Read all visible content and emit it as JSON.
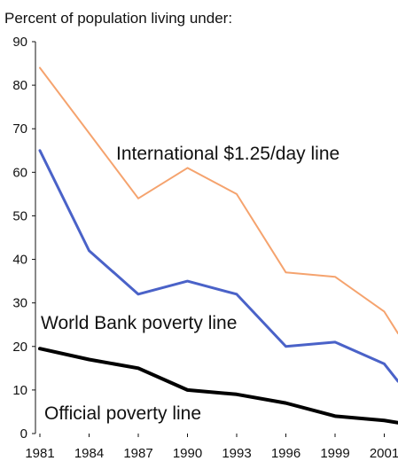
{
  "chart_data": {
    "type": "line",
    "title": "Percent of population living under:",
    "xlabel": "",
    "ylabel": "",
    "x": [
      "1981",
      "1984",
      "1987",
      "1990",
      "1993",
      "1996",
      "1999",
      "2001"
    ],
    "ylim": [
      0,
      90
    ],
    "yticks": [
      0,
      10,
      20,
      30,
      40,
      50,
      60,
      70,
      80,
      90
    ],
    "grid": false,
    "legend": "inline labels",
    "series": [
      {
        "name": "International $1.25/day line",
        "color": "#F5A36E",
        "values": [
          84,
          69,
          54,
          61,
          55,
          37,
          36,
          28
        ]
      },
      {
        "name": "World Bank poverty line",
        "color": "#4A62C8",
        "values": [
          65,
          42,
          32,
          35,
          32,
          20,
          21,
          16
        ]
      },
      {
        "name": "Official poverty line",
        "color": "#000000",
        "values": [
          19.5,
          17,
          15,
          10,
          9,
          7,
          4,
          3
        ]
      }
    ],
    "tail_values": [
      23,
      12,
      2.5
    ]
  }
}
